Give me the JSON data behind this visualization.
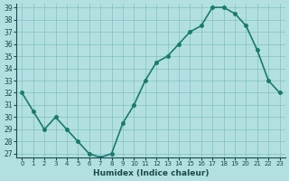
{
  "x": [
    0,
    1,
    2,
    3,
    4,
    5,
    6,
    7,
    8,
    9,
    10,
    11,
    12,
    13,
    14,
    15,
    16,
    17,
    18,
    19,
    20,
    21,
    22,
    23
  ],
  "y": [
    32,
    30.5,
    29,
    30,
    29,
    28,
    27,
    26.7,
    27,
    29.5,
    31,
    33,
    34.5,
    35,
    36,
    37,
    37.5,
    39,
    39,
    38.5,
    37.5,
    35.5,
    33,
    32
  ],
  "xlabel": "Humidex (Indice chaleur)",
  "line_color": "#1a7a6e",
  "marker_color": "#1a7a6e",
  "bg_color": "#b2e0e0",
  "grid_color": "#80c0c0",
  "ylim": [
    27,
    39
  ],
  "xlim": [
    0,
    23
  ],
  "yticks": [
    27,
    28,
    29,
    30,
    31,
    32,
    33,
    34,
    35,
    36,
    37,
    38,
    39
  ],
  "xticks": [
    0,
    1,
    2,
    3,
    4,
    5,
    6,
    7,
    8,
    9,
    10,
    11,
    12,
    13,
    14,
    15,
    16,
    17,
    18,
    19,
    20,
    21,
    22,
    23
  ]
}
